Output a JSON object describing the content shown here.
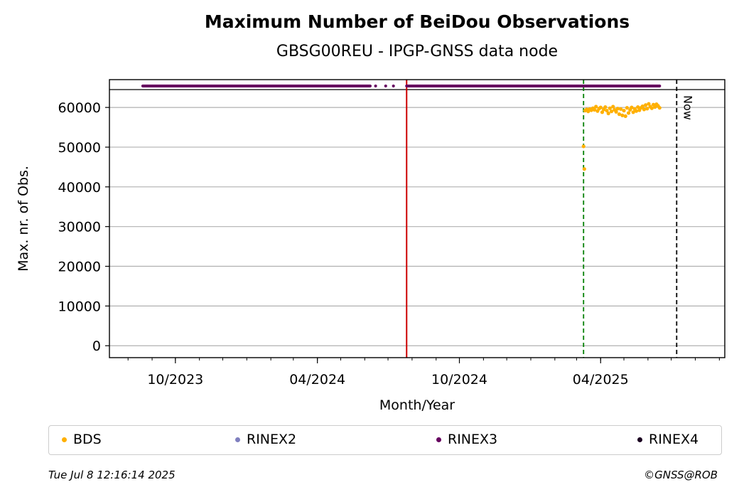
{
  "chart_data": {
    "type": "scatter",
    "title": "Maximum Number of BeiDou Observations",
    "subtitle": "GBSG00REU - IPGP-GNSS data node",
    "xlabel": "Month/Year",
    "ylabel": "Max. nr. of Obs.",
    "xlim": [
      "2023-07-08",
      "2025-09-08"
    ],
    "ylim": [
      -3000,
      67000
    ],
    "x_ticks": [
      "10/2023",
      "04/2024",
      "10/2024",
      "04/2025"
    ],
    "y_ticks": [
      0,
      10000,
      20000,
      30000,
      40000,
      50000,
      60000
    ],
    "grid": "horizontal",
    "legend_position": "bottom",
    "reference_line_y": 64500,
    "vertical_lines": [
      {
        "date": "2024-07-25",
        "color": "#cc0000",
        "style": "solid"
      },
      {
        "date": "2025-03-10",
        "color": "#008000",
        "style": "dashed"
      },
      {
        "date": "2025-07-08",
        "color": "#000000",
        "style": "dashed",
        "label": "Now"
      }
    ],
    "series": [
      {
        "name": "BDS",
        "color": "#ffb000",
        "points": [
          [
            "2025-03-10",
            50200
          ],
          [
            "2025-03-11",
            44500
          ],
          [
            "2025-03-12",
            59200
          ],
          [
            "2025-03-14",
            59500
          ],
          [
            "2025-03-16",
            59000
          ],
          [
            "2025-03-18",
            59600
          ],
          [
            "2025-03-20",
            59300
          ],
          [
            "2025-03-22",
            59800
          ],
          [
            "2025-03-24",
            59400
          ],
          [
            "2025-03-26",
            60200
          ],
          [
            "2025-03-28",
            59100
          ],
          [
            "2025-03-30",
            59700
          ],
          [
            "2025-04-01",
            60000
          ],
          [
            "2025-04-03",
            58800
          ],
          [
            "2025-04-05",
            59500
          ],
          [
            "2025-04-07",
            60100
          ],
          [
            "2025-04-09",
            59200
          ],
          [
            "2025-04-11",
            58500
          ],
          [
            "2025-04-13",
            59800
          ],
          [
            "2025-04-15",
            59000
          ],
          [
            "2025-04-17",
            60200
          ],
          [
            "2025-04-19",
            59400
          ],
          [
            "2025-04-21",
            58900
          ],
          [
            "2025-04-23",
            59700
          ],
          [
            "2025-04-25",
            58300
          ],
          [
            "2025-04-27",
            59600
          ],
          [
            "2025-04-29",
            58000
          ],
          [
            "2025-05-01",
            59200
          ],
          [
            "2025-05-03",
            57800
          ],
          [
            "2025-05-05",
            59900
          ],
          [
            "2025-05-07",
            58600
          ],
          [
            "2025-05-09",
            59400
          ],
          [
            "2025-05-11",
            60000
          ],
          [
            "2025-05-13",
            58800
          ],
          [
            "2025-05-15",
            59600
          ],
          [
            "2025-05-17",
            59100
          ],
          [
            "2025-05-19",
            60100
          ],
          [
            "2025-05-21",
            59300
          ],
          [
            "2025-05-23",
            59900
          ],
          [
            "2025-05-25",
            60300
          ],
          [
            "2025-05-27",
            59500
          ],
          [
            "2025-05-29",
            60600
          ],
          [
            "2025-05-31",
            59700
          ],
          [
            "2025-06-02",
            60900
          ],
          [
            "2025-06-04",
            60200
          ],
          [
            "2025-06-06",
            59800
          ],
          [
            "2025-06-08",
            60700
          ],
          [
            "2025-06-10",
            60100
          ],
          [
            "2025-06-12",
            60800
          ],
          [
            "2025-06-14",
            60400
          ],
          [
            "2025-06-16",
            59900
          ]
        ]
      },
      {
        "name": "RINEX2",
        "color": "#7f7fbf",
        "points": []
      },
      {
        "name": "RINEX3",
        "color": "#66005f",
        "y_value": 65400,
        "continuous_ranges": [
          [
            "2023-08-20",
            "2024-06-08"
          ],
          [
            "2024-07-25",
            "2025-06-16"
          ]
        ],
        "points": [
          [
            "2024-06-15",
            65400
          ],
          [
            "2024-06-28",
            65400
          ],
          [
            "2024-07-08",
            65400
          ]
        ]
      },
      {
        "name": "RINEX4",
        "color": "#1a0020",
        "points": []
      }
    ]
  },
  "footer": {
    "timestamp": "Tue Jul  8 12:16:14 2025",
    "copyright": "©GNSS@ROB"
  }
}
